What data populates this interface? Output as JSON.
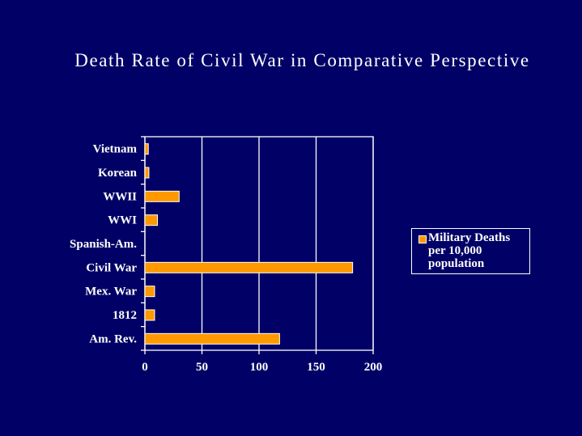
{
  "chart_data": {
    "type": "bar",
    "orientation": "horizontal",
    "title": "Death Rate of Civil War in Comparative Perspective",
    "categories": [
      "Am. Rev.",
      "1812",
      "Mex. War",
      "Civil War",
      "Spanish-Am.",
      "WWI",
      "WWII",
      "Korean",
      "Vietnam"
    ],
    "series": [
      {
        "name": "Military Deaths per 10,000 population",
        "values": [
          118,
          8.5,
          8.5,
          182,
          0,
          11,
          30,
          3.5,
          3
        ],
        "color": "#ff9900"
      }
    ],
    "xlim": [
      0,
      200
    ],
    "xticks": [
      "0",
      "50",
      "100",
      "150",
      "200"
    ],
    "grid": true,
    "legend": "right",
    "xlabel": "",
    "ylabel": ""
  }
}
